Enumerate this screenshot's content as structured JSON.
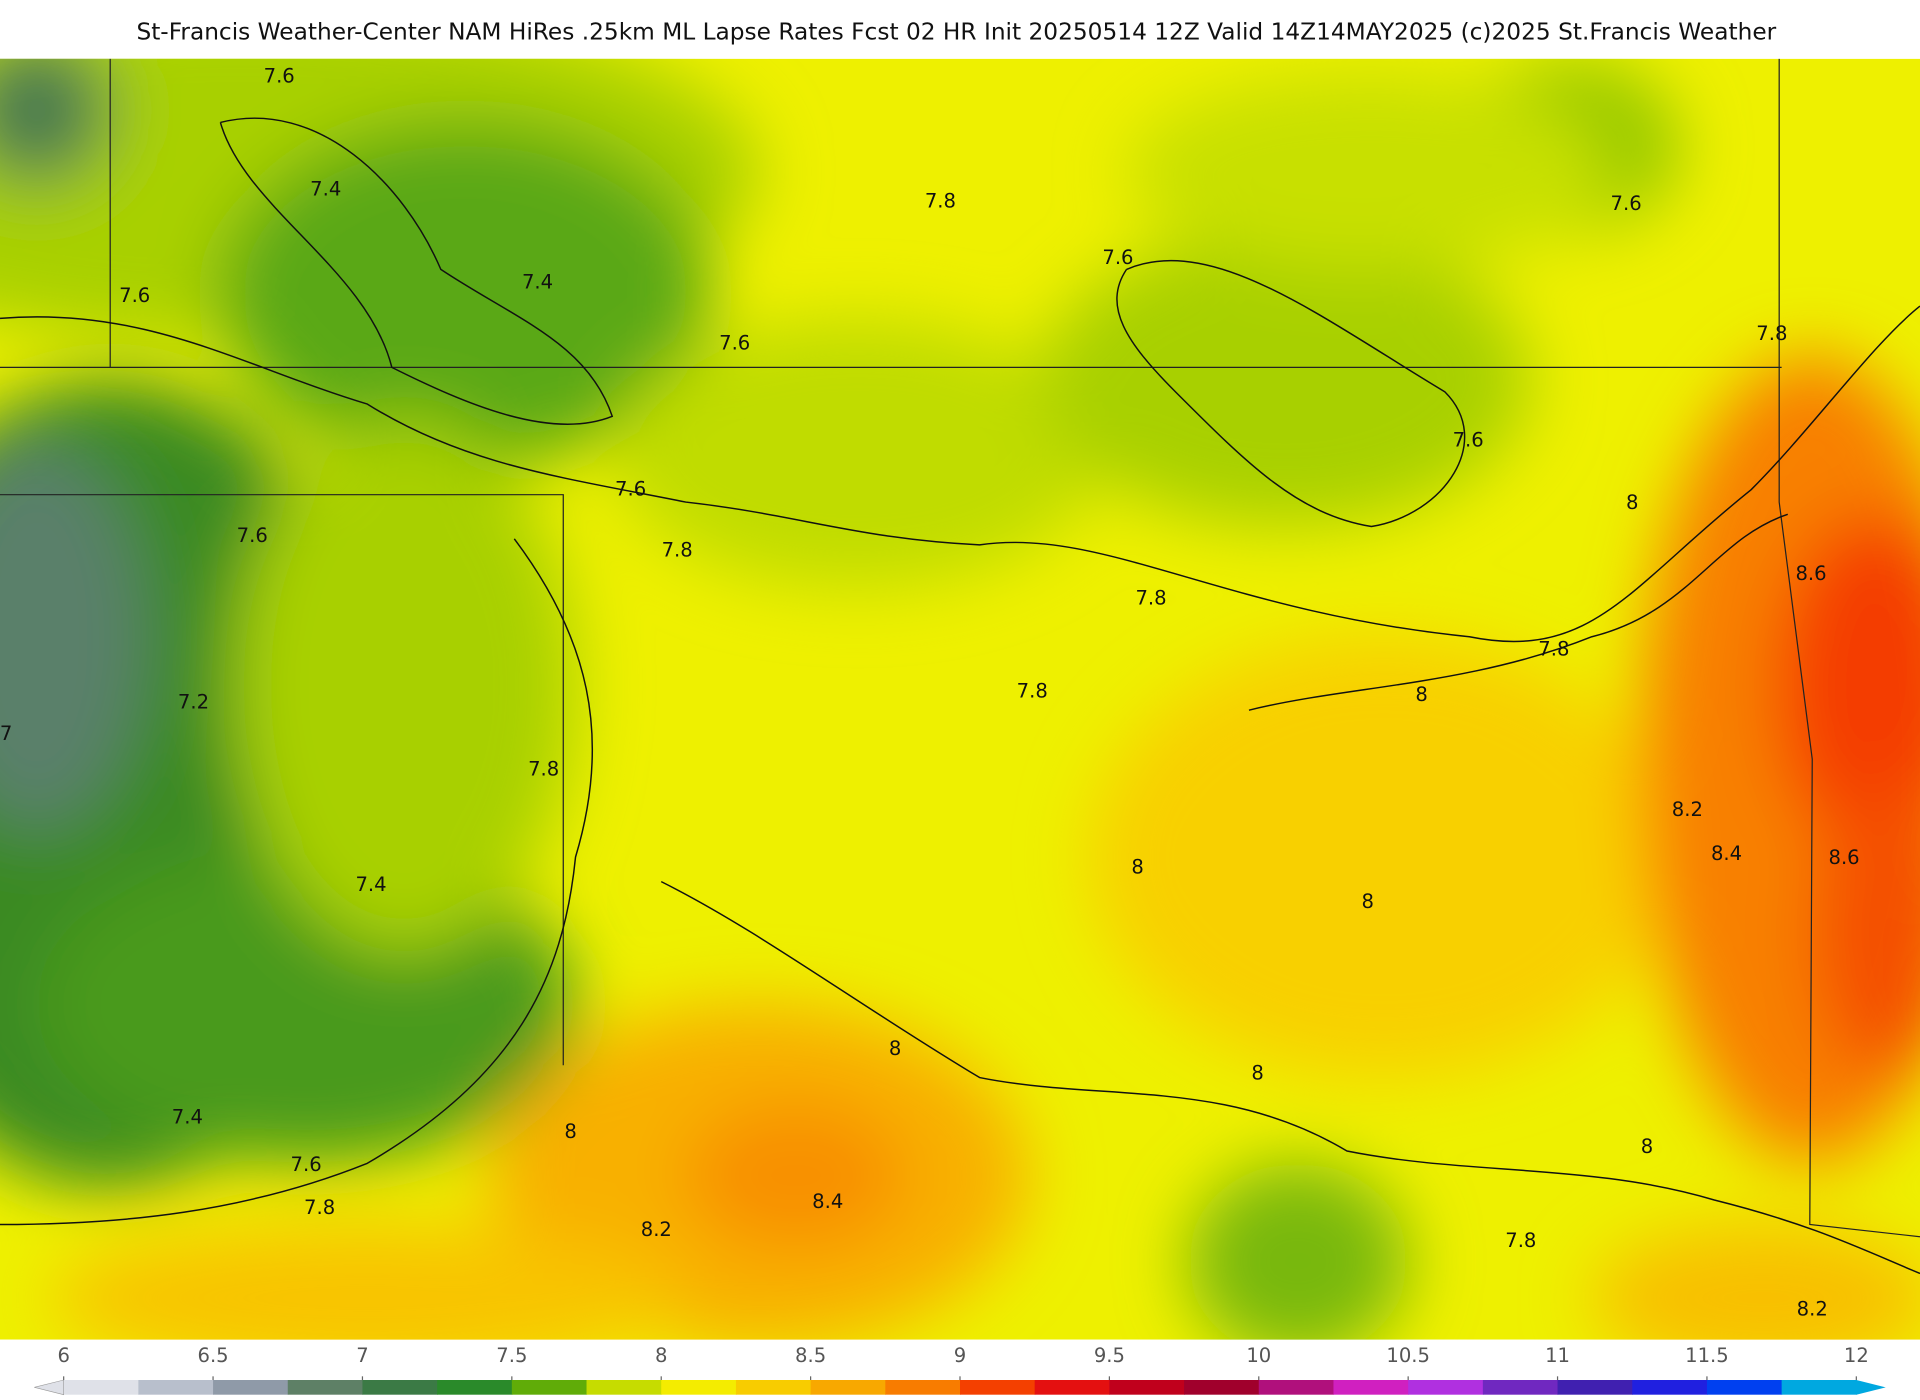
{
  "header": {
    "title": "St-Francis Weather-Center NAM HiRes .25km ML Lapse Rates  Fcst 02 HR Init 20250514 12Z  Valid 14Z14MAY2025    (c)2025 St.Francis Weather"
  },
  "map": {
    "contour_labels": [
      7.6,
      7.4,
      7.4,
      7.6,
      7.6,
      7.8,
      7.6,
      7.6,
      7.8,
      7.6,
      7.6,
      7.6,
      7.8,
      7.8,
      8,
      8.6,
      7.8,
      7.8,
      8,
      7.2,
      7,
      7.8,
      8.2,
      8.4,
      8.6,
      8,
      8,
      7.4,
      8,
      8,
      7.4,
      8,
      8,
      7.6,
      8.4,
      7.8,
      8.2,
      7.8,
      8.2
    ]
  },
  "colorbar": {
    "ticks": [
      6,
      6.5,
      7,
      7.5,
      8,
      8.5,
      9,
      9.5,
      10,
      10.5,
      11,
      11.5,
      12
    ],
    "colors": [
      "#dfe1e8",
      "#b8bfcc",
      "#8f9aa8",
      "#5e8066",
      "#3b7a45",
      "#2a8a2a",
      "#60ac08",
      "#c6dc00",
      "#f4ec00",
      "#f8cc00",
      "#f8a800",
      "#f87c00",
      "#f44000",
      "#e41010",
      "#c0001c",
      "#a0002c",
      "#b0107c",
      "#d020c0",
      "#b030e0",
      "#7028c0",
      "#4020b0",
      "#2020e0",
      "#0040f0",
      "#00a8e0"
    ]
  }
}
